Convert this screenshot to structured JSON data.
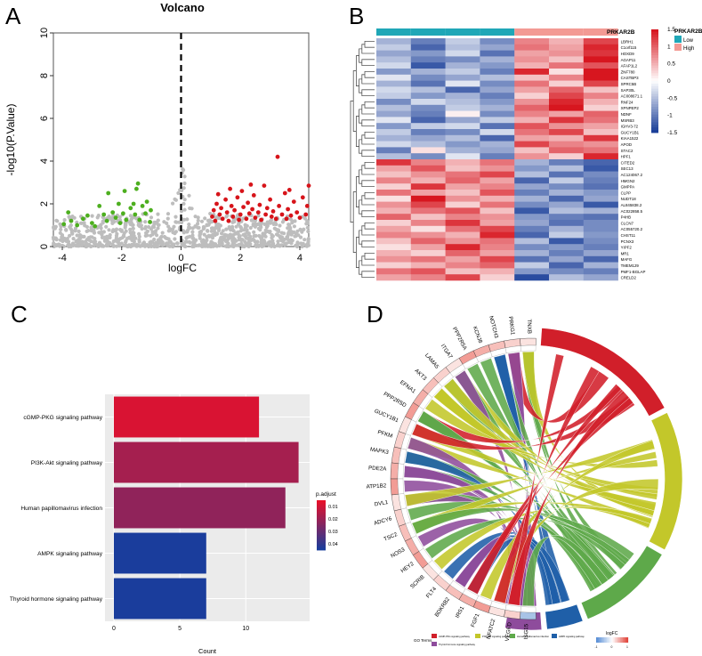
{
  "panel_letters": [
    "A",
    "B",
    "C",
    "D"
  ],
  "chart_data": [
    {
      "panel": "A",
      "type": "scatter",
      "title": "Volcano",
      "xlabel": "logFC",
      "ylabel": "-log10(P.Value)",
      "xlim": [
        -4.3,
        4.3
      ],
      "ylim": [
        0,
        10
      ],
      "xticks": [
        -4,
        -2,
        0,
        2,
        4
      ],
      "yticks": [
        0,
        2,
        4,
        6,
        8,
        10
      ],
      "threshold_x": 0,
      "colors": {
        "down": "#4daf1f",
        "up": "#d7141a",
        "ns": "#bdbdbd"
      },
      "series": [
        {
          "name": "down",
          "points": [
            [
              -3.95,
              1.05
            ],
            [
              -3.8,
              1.6
            ],
            [
              -3.7,
              1.2
            ],
            [
              -3.5,
              1.0
            ],
            [
              -3.3,
              1.3
            ],
            [
              -3.0,
              1.1
            ],
            [
              -2.9,
              0.95
            ],
            [
              -2.75,
              1.9
            ],
            [
              -2.6,
              1.5
            ],
            [
              -2.5,
              1.2
            ],
            [
              -2.45,
              2.5
            ],
            [
              -2.3,
              1.6
            ],
            [
              -2.2,
              1.35
            ],
            [
              -2.1,
              2.0
            ],
            [
              -1.95,
              1.55
            ],
            [
              -1.9,
              2.6
            ],
            [
              -1.85,
              1.25
            ],
            [
              -1.7,
              1.8
            ],
            [
              -1.6,
              2.0
            ],
            [
              -1.55,
              1.5
            ],
            [
              -1.45,
              2.95
            ],
            [
              -1.4,
              1.25
            ],
            [
              -1.3,
              1.9
            ],
            [
              -1.2,
              1.55
            ],
            [
              -1.15,
              2.1
            ],
            [
              -1.05,
              1.15
            ],
            [
              -1.02,
              1.7
            ],
            [
              -1.5,
              2.7
            ],
            [
              -2.05,
              1.1
            ],
            [
              -3.15,
              1.45
            ]
          ]
        },
        {
          "name": "up",
          "points": [
            [
              1.05,
              1.4
            ],
            [
              1.1,
              1.7
            ],
            [
              1.15,
              1.2
            ],
            [
              1.2,
              2.0
            ],
            [
              1.3,
              1.5
            ],
            [
              1.35,
              1.8
            ],
            [
              1.4,
              1.3
            ],
            [
              1.5,
              2.2
            ],
            [
              1.55,
              1.6
            ],
            [
              1.6,
              1.2
            ],
            [
              1.7,
              1.9
            ],
            [
              1.75,
              1.4
            ],
            [
              1.8,
              1.7
            ],
            [
              1.9,
              2.3
            ],
            [
              1.95,
              1.25
            ],
            [
              2.0,
              1.5
            ],
            [
              2.05,
              2.6
            ],
            [
              2.1,
              1.85
            ],
            [
              2.2,
              1.3
            ],
            [
              2.25,
              2.05
            ],
            [
              2.3,
              1.55
            ],
            [
              2.4,
              1.75
            ],
            [
              2.45,
              2.4
            ],
            [
              2.5,
              1.35
            ],
            [
              2.6,
              1.6
            ],
            [
              2.65,
              1.95
            ],
            [
              2.7,
              1.25
            ],
            [
              2.8,
              2.85
            ],
            [
              2.85,
              1.5
            ],
            [
              2.9,
              1.8
            ],
            [
              3.0,
              2.2
            ],
            [
              3.05,
              1.4
            ],
            [
              3.1,
              1.65
            ],
            [
              3.2,
              1.3
            ],
            [
              3.25,
              4.2
            ],
            [
              3.3,
              1.9
            ],
            [
              3.4,
              1.5
            ],
            [
              3.5,
              2.5
            ],
            [
              3.55,
              1.3
            ],
            [
              3.6,
              1.75
            ],
            [
              3.7,
              1.45
            ],
            [
              3.8,
              2.1
            ],
            [
              3.9,
              1.6
            ],
            [
              4.0,
              1.35
            ],
            [
              4.1,
              2.3
            ],
            [
              4.2,
              1.5
            ],
            [
              4.25,
              1.9
            ],
            [
              4.3,
              2.85
            ],
            [
              1.25,
              2.45
            ],
            [
              1.65,
              2.7
            ],
            [
              2.35,
              2.9
            ],
            [
              3.65,
              2.65
            ]
          ]
        }
      ]
    },
    {
      "panel": "B",
      "type": "heatmap",
      "legend_title": "PRKAR2B",
      "groups": [
        {
          "name": "Low",
          "color": "#1fa7b7",
          "n": 4
        },
        {
          "name": "High",
          "color": "#f39a94",
          "n": 3
        }
      ],
      "color_scale": {
        "min": -1.5,
        "max": 1.5,
        "low": "#1b3f99",
        "mid": "#ffffff",
        "high": "#d7161f"
      },
      "colorbar_ticks": [
        1.5,
        1,
        0.5,
        0,
        -0.5,
        -1,
        -1.5
      ],
      "genes": [
        "LBRH1",
        "C1orf115",
        "HOXD9",
        "AGAP11",
        "AFAP1L2",
        "ZNF780",
        "CASTBP3",
        "SPRC5B",
        "SAP30L",
        "AC008671.1",
        "RNF24",
        "XPNPEP2",
        "NDNF",
        "MSRB3",
        "IGHV3-72",
        "GUCY1B1",
        "KIAA1522",
        "APOD",
        "STAC2",
        "HPF1",
        "CITED2",
        "SEC13",
        "AC124067.2",
        "HMGN2",
        "GMPPA",
        "CLPP",
        "NUDT18",
        "AL845838.2",
        "AC022858.5",
        "P4HB",
        "CLCN7",
        "AC055720.2",
        "CHST11",
        "PCNX3",
        "YIPF2",
        "MR1",
        "MAFG",
        "TMEM129",
        "PMF1-BGLAP",
        "CRELD2"
      ],
      "values": [
        [
          -0.6,
          -1.0,
          -0.4,
          -0.9,
          0.8,
          0.5,
          1.2
        ],
        [
          -0.4,
          -1.2,
          -0.5,
          -0.7,
          0.9,
          0.6,
          1.4
        ],
        [
          -0.7,
          -0.8,
          -0.3,
          -1.1,
          0.6,
          0.7,
          1.3
        ],
        [
          -0.5,
          -1.0,
          -0.9,
          -0.6,
          0.7,
          0.4,
          1.5
        ],
        [
          -0.3,
          -1.3,
          -0.6,
          -0.8,
          0.5,
          0.9,
          1.1
        ],
        [
          -0.8,
          -0.6,
          -0.4,
          -1.0,
          1.4,
          0.2,
          1.5
        ],
        [
          -0.2,
          -0.9,
          -0.7,
          -0.5,
          0.4,
          0.8,
          1.6
        ],
        [
          -0.6,
          -1.1,
          -0.2,
          -0.9,
          0.9,
          0.3,
          1.2
        ],
        [
          -0.3,
          -0.5,
          -1.2,
          -0.7,
          0.6,
          1.0,
          0.4
        ],
        [
          -0.4,
          -0.8,
          -0.6,
          -1.0,
          0.3,
          1.2,
          0.8
        ],
        [
          -0.9,
          -0.3,
          -0.5,
          -0.8,
          0.7,
          1.4,
          0.5
        ],
        [
          -0.5,
          -0.9,
          -0.4,
          -0.6,
          1.0,
          1.5,
          0.3
        ],
        [
          -0.7,
          -1.0,
          0.1,
          -0.9,
          0.8,
          0.6,
          1.0
        ],
        [
          -0.2,
          -1.2,
          -0.7,
          -0.4,
          0.5,
          1.3,
          0.9
        ],
        [
          -0.8,
          -0.4,
          -0.3,
          -1.1,
          1.1,
          0.7,
          0.6
        ],
        [
          -0.4,
          -1.0,
          -0.9,
          -0.3,
          0.9,
          1.2,
          0.4
        ],
        [
          -0.6,
          -0.7,
          -0.5,
          -1.2,
          0.6,
          0.5,
          1.3
        ],
        [
          -0.3,
          -0.5,
          -0.8,
          -0.6,
          1.2,
          0.8,
          0.7
        ],
        [
          -1.0,
          0.2,
          -0.6,
          -0.7,
          0.4,
          1.0,
          0.9
        ],
        [
          -0.5,
          -0.9,
          -0.2,
          -1.0,
          0.7,
          0.3,
          1.4
        ],
        [
          1.3,
          0.8,
          0.5,
          0.9,
          -0.6,
          -1.0,
          -1.2
        ],
        [
          0.6,
          1.1,
          0.4,
          0.7,
          -0.8,
          -0.5,
          -1.3
        ],
        [
          0.4,
          0.7,
          0.9,
          1.2,
          -0.5,
          -1.1,
          -0.9
        ],
        [
          0.8,
          0.5,
          1.0,
          0.6,
          -1.2,
          -0.4,
          -1.0
        ],
        [
          0.3,
          1.3,
          0.6,
          0.8,
          -0.7,
          -0.9,
          -1.1
        ],
        [
          0.9,
          0.6,
          0.4,
          1.1,
          -1.0,
          -0.6,
          -0.8
        ],
        [
          0.2,
          1.5,
          0.7,
          0.5,
          -0.6,
          -1.2,
          -0.7
        ],
        [
          0.7,
          1.2,
          0.3,
          0.9,
          -0.9,
          -0.7,
          -1.3
        ],
        [
          0.5,
          0.9,
          1.1,
          0.4,
          -1.3,
          -0.5,
          -0.6
        ],
        [
          1.0,
          0.4,
          0.8,
          0.7,
          -0.8,
          -1.0,
          -1.1
        ],
        [
          0.3,
          0.8,
          1.3,
          0.6,
          -0.7,
          -1.1,
          -0.9
        ],
        [
          0.6,
          0.2,
          0.9,
          1.2,
          -1.0,
          -0.6,
          -0.9
        ],
        [
          0.8,
          0.7,
          0.5,
          1.4,
          -1.2,
          -0.4,
          -0.8
        ],
        [
          0.4,
          1.0,
          0.7,
          0.9,
          -0.5,
          -1.3,
          -0.9
        ],
        [
          0.2,
          0.6,
          1.4,
          0.8,
          -0.9,
          -0.8,
          -1.0
        ],
        [
          0.5,
          0.3,
          1.0,
          0.6,
          -0.6,
          -1.0,
          -0.7
        ],
        [
          0.7,
          0.9,
          0.6,
          1.2,
          -1.1,
          -0.7,
          -1.2
        ],
        [
          0.3,
          0.5,
          0.8,
          1.0,
          -0.4,
          -1.2,
          -0.6
        ],
        [
          0.9,
          1.1,
          0.4,
          0.5,
          -0.8,
          -0.9,
          -1.0
        ],
        [
          0.6,
          0.8,
          1.2,
          0.3,
          -1.4,
          -0.5,
          -0.7
        ]
      ]
    },
    {
      "panel": "C",
      "type": "bar",
      "orientation": "horizontal",
      "categories": [
        "cGMP-PKG signaling pathway",
        "PI3K-Akt signaling pathway",
        "Human papillomavirus infection",
        "AMPK signaling pathway",
        "Thyroid hormone signaling pathway"
      ],
      "values": [
        11,
        14,
        13,
        7,
        7
      ],
      "p_adjust": [
        0.008,
        0.018,
        0.022,
        0.045,
        0.045
      ],
      "xlabel": "Count",
      "xlim": [
        0,
        14.5
      ],
      "xticks": [
        0,
        5,
        10
      ],
      "legend_title": "p.adjust",
      "legend_ticks": [
        0.01,
        0.02,
        0.03,
        0.04
      ],
      "color_scale": {
        "min": 0.005,
        "max": 0.045,
        "low": "#e8102a",
        "high": "#1a3d9c"
      }
    },
    {
      "panel": "D",
      "type": "chord",
      "genes": [
        "TNXB",
        "PRKG1",
        "NOTCH3",
        "KCNJ8",
        "PPP2R5A",
        "ITGA7",
        "LAMA5",
        "AKT3",
        "EFNA1",
        "PPP2R5D",
        "GUCY1B1",
        "PFKM",
        "MAPK3",
        "PDE2A",
        "ATP1B2",
        "DVL1",
        "ADCY6",
        "TSC2",
        "NOS3",
        "HEY2",
        "SCRIB",
        "FLT4",
        "BDKRB2",
        "IRS1",
        "FGF1",
        "NFATC2",
        "VEGFD",
        "ISG15"
      ],
      "terms": [
        {
          "name": "cGMP-PKG signaling pathway",
          "color": "#d11f2a"
        },
        {
          "name": "PI3K-Akt signaling pathway",
          "color": "#c3c72a"
        },
        {
          "name": "Human papillomavirus infection",
          "color": "#5ea94a"
        },
        {
          "name": "AMPK signaling pathway",
          "color": "#1f5fa8"
        },
        {
          "name": "Thyroid hormone signaling pathway",
          "color": "#8e4c9c"
        }
      ],
      "legend_title": "GO Terms",
      "logfc_title": "logFC",
      "logfc_ticks": [
        "-1",
        "0",
        "1"
      ]
    }
  ]
}
